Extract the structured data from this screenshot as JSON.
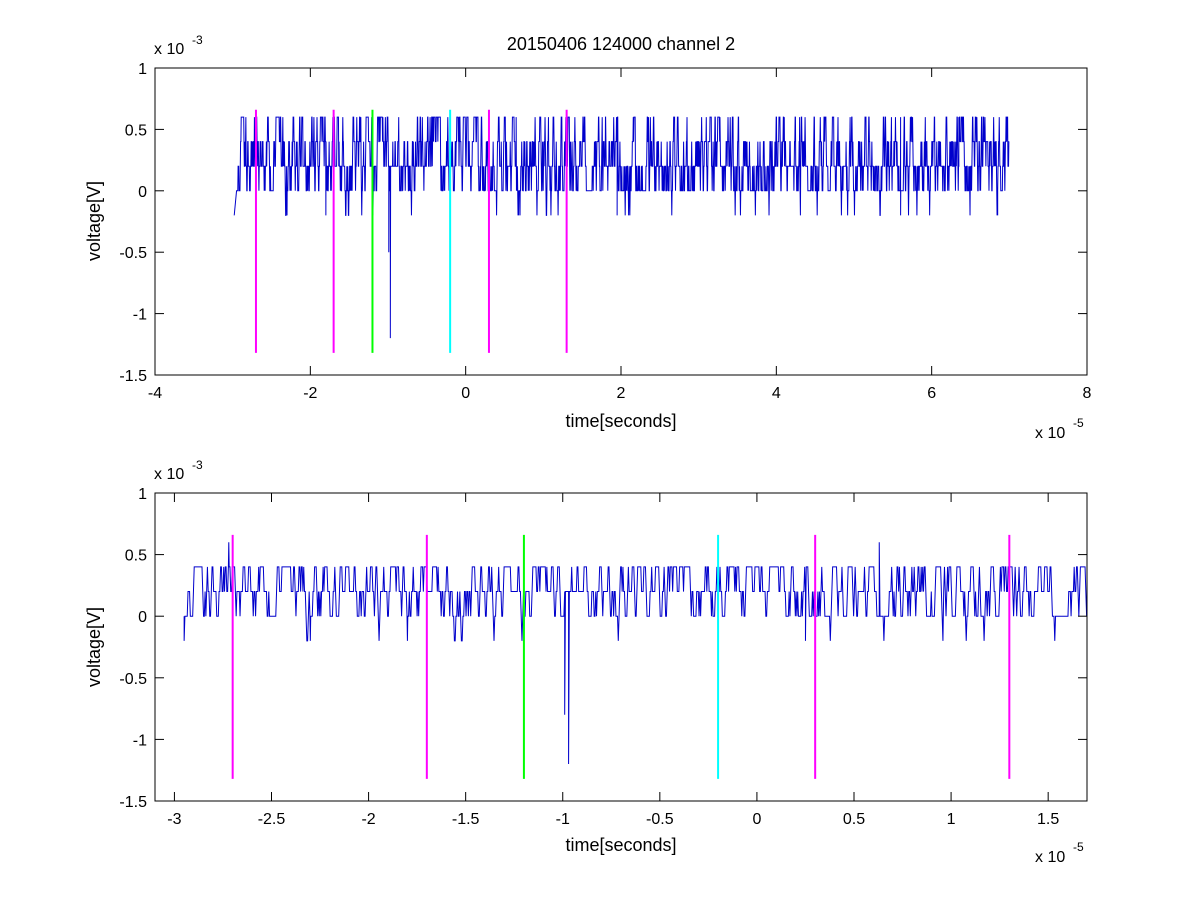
{
  "chart_data": [
    {
      "type": "line",
      "title": "20150406 124000 channel 2",
      "xlabel": "time[seconds]",
      "ylabel": "voltage[V]",
      "xlim": [
        -4e-05,
        8e-05
      ],
      "ylim": [
        -0.0015,
        0.001
      ],
      "x_ticks": [
        -4e-05,
        -2e-05,
        0,
        2e-05,
        4e-05,
        6e-05,
        8e-05
      ],
      "x_tick_labels": [
        "-4",
        "-2",
        "0",
        "2",
        "4",
        "6",
        "8"
      ],
      "y_ticks": [
        -0.0015,
        -0.001,
        -0.0005,
        0,
        0.0005,
        0.001
      ],
      "y_tick_labels": [
        "-1.5",
        "-1",
        "-0.5",
        "0",
        "0.5",
        "1"
      ],
      "x_exponent_base": "x 10",
      "x_exponent": "-5",
      "y_exponent_base": "x 10",
      "y_exponent": "-3",
      "grid": false,
      "signal": {
        "color": "#0000cc",
        "t_start": -2.95e-05,
        "t_end": 7e-05,
        "sample_step": 4e-08,
        "levels": [
          -0.0002,
          0,
          0.0002,
          0.0004,
          0.0006
        ],
        "spikes": [
          {
            "t": -2.98e-05,
            "v": -0.0002
          },
          {
            "t": -2.72e-05,
            "v": 0.0006
          },
          {
            "t": -2.3e-05,
            "v": -0.0002
          },
          {
            "t": -1.8e-05,
            "v": -0.0002
          },
          {
            "t": -1.2e-05,
            "v": -0.0002
          },
          {
            "t": -9.9e-06,
            "v": -0.0005
          },
          {
            "t": -9.7e-06,
            "v": -0.0012
          },
          {
            "t": -2e-06,
            "v": -0.0002
          },
          {
            "t": 6.5e-06,
            "v": 0.0006
          },
          {
            "t": 7e-06,
            "v": -0.0002
          },
          {
            "t": 1.95e-05,
            "v": -0.0002
          },
          {
            "t": 1.8e-05,
            "v": 0.0006
          },
          {
            "t": 4.3e-05,
            "v": 0.0006
          },
          {
            "t": 5.6e-05,
            "v": 0.0006
          },
          {
            "t": 5.6e-05,
            "v": -0.0002
          },
          {
            "t": 6.35e-05,
            "v": 0.0006
          },
          {
            "t": 6.85e-05,
            "v": -0.0002
          }
        ]
      },
      "markers": [
        {
          "t": -2.7e-05,
          "color": "#ff00ff"
        },
        {
          "t": -1.7e-05,
          "color": "#ff00ff"
        },
        {
          "t": -1.2e-05,
          "color": "#00ff00"
        },
        {
          "t": -2e-06,
          "color": "#00ffff"
        },
        {
          "t": 3e-06,
          "color": "#ff00ff"
        },
        {
          "t": 1.3e-05,
          "color": "#ff00ff"
        }
      ],
      "marker_range": [
        -0.00132,
        0.00066
      ]
    },
    {
      "type": "line",
      "title": "",
      "xlabel": "time[seconds]",
      "ylabel": "voltage[V]",
      "xlim": [
        -3.1e-05,
        1.7e-05
      ],
      "ylim": [
        -0.0015,
        0.001
      ],
      "x_ticks": [
        -3e-05,
        -2.5e-05,
        -2e-05,
        -1.5e-05,
        -1e-05,
        -5e-06,
        0,
        5e-06,
        1e-05,
        1.5e-05
      ],
      "x_tick_labels": [
        "-3",
        "-2.5",
        "-2",
        "-1.5",
        "-1",
        "-0.5",
        "0",
        "0.5",
        "1",
        "1.5"
      ],
      "y_ticks": [
        -0.0015,
        -0.001,
        -0.0005,
        0,
        0.0005,
        0.001
      ],
      "y_tick_labels": [
        "-1.5",
        "-1",
        "-0.5",
        "0",
        "0.5",
        "1"
      ],
      "x_exponent_base": "x 10",
      "x_exponent": "-5",
      "y_exponent_base": "x 10",
      "y_exponent": "-3",
      "grid": false,
      "signal": {
        "color": "#0000cc",
        "t_start": -2.95e-05,
        "t_end": 1.7e-05,
        "sample_step": 4e-08,
        "levels": [
          -0.0002,
          0,
          0.0002,
          0.0004
        ],
        "spikes": [
          {
            "t": -2.95e-05,
            "v": -0.0002
          },
          {
            "t": -2.72e-05,
            "v": 0.0006
          },
          {
            "t": -2.3e-05,
            "v": -0.0002
          },
          {
            "t": -1.8e-05,
            "v": -0.0002
          },
          {
            "t": -1.2e-05,
            "v": -0.0002
          },
          {
            "t": -9.9e-06,
            "v": -0.0008
          },
          {
            "t": -9.7e-06,
            "v": -0.0012
          },
          {
            "t": -2e-06,
            "v": -0.0002
          },
          {
            "t": 2.5e-06,
            "v": -0.0002
          },
          {
            "t": 6.3e-06,
            "v": 0.0006
          }
        ]
      },
      "markers": [
        {
          "t": -2.7e-05,
          "color": "#ff00ff"
        },
        {
          "t": -1.7e-05,
          "color": "#ff00ff"
        },
        {
          "t": -1.2e-05,
          "color": "#00ff00"
        },
        {
          "t": -2e-06,
          "color": "#00ffff"
        },
        {
          "t": 3e-06,
          "color": "#ff00ff"
        },
        {
          "t": 1.3e-05,
          "color": "#ff00ff"
        }
      ],
      "marker_range": [
        -0.00132,
        0.00066
      ]
    }
  ]
}
